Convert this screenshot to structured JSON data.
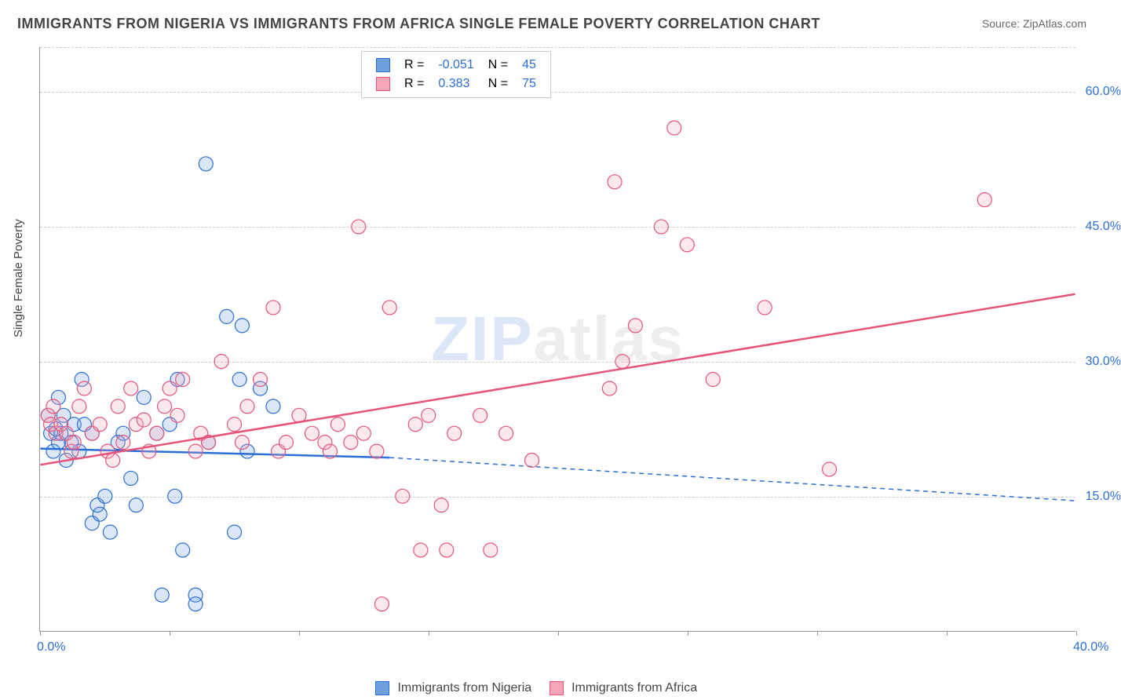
{
  "title": "IMMIGRANTS FROM NIGERIA VS IMMIGRANTS FROM AFRICA SINGLE FEMALE POVERTY CORRELATION CHART",
  "source": "Source: ZipAtlas.com",
  "ylabel": "Single Female Poverty",
  "watermark_a": "ZIP",
  "watermark_b": "atlas",
  "chart": {
    "type": "scatter",
    "xlim": [
      0,
      40
    ],
    "ylim": [
      0,
      65
    ],
    "xticks": [
      0,
      5,
      10,
      15,
      20,
      25,
      30,
      35,
      40
    ],
    "xtick_labels": {
      "0": "0.0%",
      "40": "40.0%"
    },
    "yticks": [
      15,
      30,
      45,
      60
    ],
    "ytick_labels": [
      "15.0%",
      "30.0%",
      "45.0%",
      "60.0%"
    ],
    "grid_color": "#d5d5d5",
    "background_color": "#ffffff",
    "marker_radius": 9,
    "marker_fill_opacity": 0.25,
    "series": [
      {
        "name": "Immigrants from Nigeria",
        "color": "#6ea0e0",
        "stroke": "#2b6fd6",
        "R": "-0.051",
        "N": "45",
        "points": [
          [
            0.3,
            24
          ],
          [
            0.4,
            22
          ],
          [
            0.5,
            20
          ],
          [
            0.6,
            22.5
          ],
          [
            0.7,
            21
          ],
          [
            0.7,
            26
          ],
          [
            0.8,
            22
          ],
          [
            0.9,
            24
          ],
          [
            1.0,
            19
          ],
          [
            1.2,
            21
          ],
          [
            1.3,
            23
          ],
          [
            1.5,
            20
          ],
          [
            1.6,
            28
          ],
          [
            1.7,
            23
          ],
          [
            2.0,
            22
          ],
          [
            2.0,
            12
          ],
          [
            2.2,
            14
          ],
          [
            2.3,
            13
          ],
          [
            2.5,
            15
          ],
          [
            2.7,
            11
          ],
          [
            3.0,
            21
          ],
          [
            3.2,
            22
          ],
          [
            3.5,
            17
          ],
          [
            3.7,
            14
          ],
          [
            4.0,
            26
          ],
          [
            4.5,
            22
          ],
          [
            4.7,
            4
          ],
          [
            5.0,
            23
          ],
          [
            5.2,
            15
          ],
          [
            5.3,
            28
          ],
          [
            5.5,
            9
          ],
          [
            6.0,
            4
          ],
          [
            6.0,
            3
          ],
          [
            6.4,
            52
          ],
          [
            6.5,
            21
          ],
          [
            7.2,
            35
          ],
          [
            7.5,
            11
          ],
          [
            7.7,
            28
          ],
          [
            7.8,
            34
          ],
          [
            8.0,
            20
          ],
          [
            8.5,
            27
          ],
          [
            9.0,
            25
          ]
        ],
        "trend": {
          "x1": 0,
          "y1": 20.3,
          "x2": 13.5,
          "y2": 19.3
        },
        "trend_ext": {
          "x1": 13.5,
          "y1": 19.3,
          "x2": 40,
          "y2": 14.5,
          "dash": true
        }
      },
      {
        "name": "Immigrants from Africa",
        "color": "#f4a6b8",
        "stroke": "#e6547a",
        "R": "0.383",
        "N": "75",
        "points": [
          [
            0.3,
            24
          ],
          [
            0.4,
            23
          ],
          [
            0.5,
            25
          ],
          [
            0.6,
            22
          ],
          [
            0.8,
            23
          ],
          [
            1.0,
            22
          ],
          [
            1.2,
            20
          ],
          [
            1.3,
            21
          ],
          [
            1.5,
            25
          ],
          [
            1.7,
            27
          ],
          [
            2.0,
            22
          ],
          [
            2.3,
            23
          ],
          [
            2.6,
            20
          ],
          [
            2.8,
            19
          ],
          [
            3.0,
            25
          ],
          [
            3.2,
            21
          ],
          [
            3.5,
            27
          ],
          [
            3.7,
            23
          ],
          [
            4.0,
            23.5
          ],
          [
            4.2,
            20
          ],
          [
            4.5,
            22
          ],
          [
            4.8,
            25
          ],
          [
            5.0,
            27
          ],
          [
            5.3,
            24
          ],
          [
            5.5,
            28
          ],
          [
            6.0,
            20
          ],
          [
            6.2,
            22
          ],
          [
            6.5,
            21
          ],
          [
            7.0,
            30
          ],
          [
            7.5,
            23
          ],
          [
            7.8,
            21
          ],
          [
            8.0,
            25
          ],
          [
            8.5,
            28
          ],
          [
            9.0,
            36
          ],
          [
            9.2,
            20
          ],
          [
            9.5,
            21
          ],
          [
            10.0,
            24
          ],
          [
            10.5,
            22
          ],
          [
            11.0,
            21
          ],
          [
            11.2,
            20
          ],
          [
            11.5,
            23
          ],
          [
            12.0,
            21
          ],
          [
            12.3,
            45
          ],
          [
            12.5,
            22
          ],
          [
            13.0,
            20
          ],
          [
            13.2,
            3
          ],
          [
            13.5,
            36
          ],
          [
            14.0,
            15
          ],
          [
            14.5,
            23
          ],
          [
            14.7,
            9
          ],
          [
            15.0,
            24
          ],
          [
            15.5,
            14
          ],
          [
            15.7,
            9
          ],
          [
            16.0,
            22
          ],
          [
            17.0,
            24
          ],
          [
            17.4,
            9
          ],
          [
            18.0,
            22
          ],
          [
            19.0,
            19
          ],
          [
            22.0,
            27
          ],
          [
            22.2,
            50
          ],
          [
            22.5,
            30
          ],
          [
            23.0,
            34
          ],
          [
            24.0,
            45
          ],
          [
            24.5,
            56
          ],
          [
            25.0,
            43
          ],
          [
            26.0,
            28
          ],
          [
            28.0,
            36
          ],
          [
            30.5,
            18
          ],
          [
            36.5,
            48
          ]
        ],
        "trend": {
          "x1": 0,
          "y1": 18.5,
          "x2": 40,
          "y2": 37.5
        }
      }
    ]
  },
  "legend_top_headers": {
    "R": "R =",
    "N": "N ="
  },
  "legend_bottom": {
    "a": "Immigrants from Nigeria",
    "b": "Immigrants from Africa"
  }
}
